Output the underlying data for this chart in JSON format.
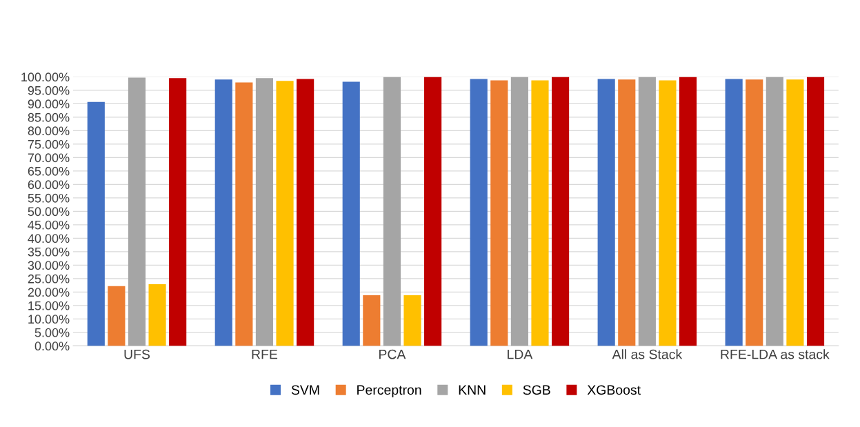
{
  "chart_data": {
    "type": "bar",
    "categories": [
      "UFS",
      "RFE",
      "PCA",
      "LDA",
      "All as Stack",
      "RFE-LDA as stack"
    ],
    "series": [
      {
        "name": "SVM",
        "color": "#4472c4",
        "values": [
          90.7,
          99.0,
          98.2,
          99.2,
          99.2,
          99.2
        ]
      },
      {
        "name": "Perceptron",
        "color": "#ed7d31",
        "values": [
          22.2,
          97.9,
          18.8,
          98.7,
          99.0,
          99.0
        ]
      },
      {
        "name": "KNN",
        "color": "#a5a5a5",
        "values": [
          99.7,
          99.5,
          100,
          100,
          100,
          100
        ]
      },
      {
        "name": "SGB",
        "color": "#ffc000",
        "values": [
          22.9,
          98.5,
          18.8,
          98.7,
          98.7,
          99.0
        ]
      },
      {
        "name": "XGBoost",
        "color": "#c00000",
        "values": [
          99.5,
          99.2,
          100,
          100,
          100,
          100
        ]
      }
    ],
    "ylim": [
      0,
      100
    ],
    "yticks": [
      {
        "value": 0,
        "label": "0.00%"
      },
      {
        "value": 5,
        "label": "5.00%"
      },
      {
        "value": 10,
        "label": "10.00%"
      },
      {
        "value": 15,
        "label": "15.00%"
      },
      {
        "value": 20,
        "label": "20.00%"
      },
      {
        "value": 25,
        "label": "25.00%"
      },
      {
        "value": 30,
        "label": "30.00%"
      },
      {
        "value": 35,
        "label": "35.00%"
      },
      {
        "value": 40,
        "label": "40.00%"
      },
      {
        "value": 45,
        "label": "45.00%"
      },
      {
        "value": 50,
        "label": "50.00%"
      },
      {
        "value": 55,
        "label": "55.00%"
      },
      {
        "value": 60,
        "label": "60.00%"
      },
      {
        "value": 65,
        "label": "65.00%"
      },
      {
        "value": 70,
        "label": "70.00%"
      },
      {
        "value": 75,
        "label": "75.00%"
      },
      {
        "value": 80,
        "label": "80.00%"
      },
      {
        "value": 85,
        "label": "85.00%"
      },
      {
        "value": 90,
        "label": "90.00%"
      },
      {
        "value": 95,
        "label": "95.00%"
      },
      {
        "value": 100,
        "label": "100.00%"
      }
    ],
    "grid": "y",
    "legend": "bottom"
  }
}
